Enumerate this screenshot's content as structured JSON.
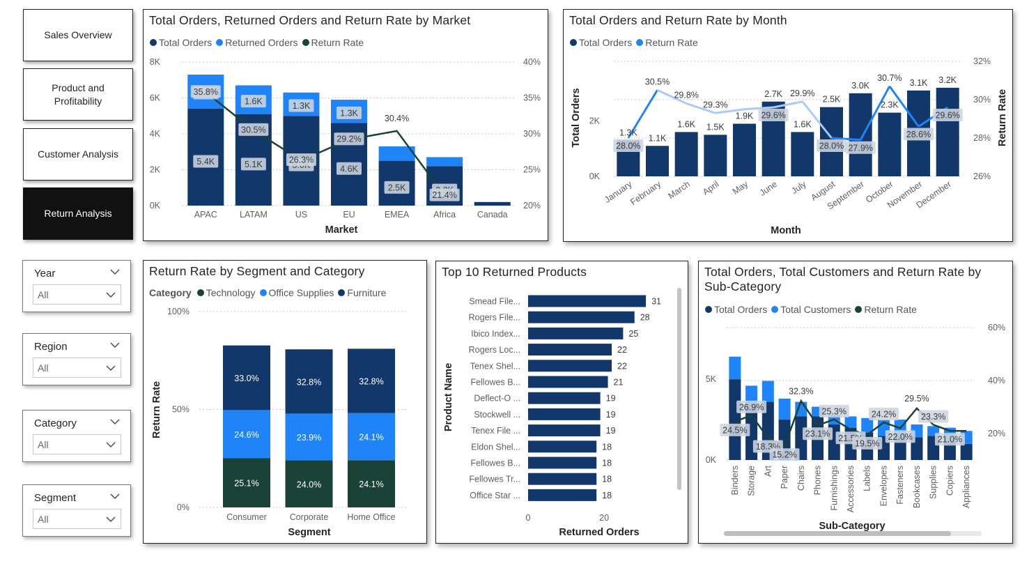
{
  "nav": [
    {
      "label": "Sales Overview",
      "active": false
    },
    {
      "label": "Product and Profitability",
      "active": false
    },
    {
      "label": "Customer Analysis",
      "active": false
    },
    {
      "label": "Return Analysis",
      "active": true
    }
  ],
  "slicers": [
    {
      "title": "Year",
      "value": "All"
    },
    {
      "title": "Region",
      "value": "All"
    },
    {
      "title": "Category",
      "value": "All"
    },
    {
      "title": "Segment",
      "value": "All"
    }
  ],
  "colors": {
    "dark_navy": "#12386b",
    "bright_blue": "#1f84f7",
    "dark_green": "#1b4237",
    "light_blue": "#a9cbf6"
  },
  "chart_data": [
    {
      "id": "market",
      "type": "bar",
      "title": "Total Orders, Returned Orders and Return Rate by Market",
      "legend": [
        "Total Orders",
        "Returned Orders",
        "Return Rate"
      ],
      "xlabel": "Market",
      "categories": [
        "APAC",
        "LATAM",
        "US",
        "EU",
        "EMEA",
        "Africa",
        "Canada"
      ],
      "series": [
        {
          "name": "Total Orders",
          "values": [
            5400,
            5100,
            5000,
            4600,
            2500,
            2200,
            200
          ],
          "labels": [
            "5.4K",
            "5.1K",
            "5.0K",
            "4.6K",
            "2.5K",
            "2.2K",
            ""
          ]
        },
        {
          "name": "Returned Orders",
          "values": [
            1900,
            1600,
            1300,
            1300,
            800,
            500,
            0
          ],
          "labels": [
            "1.9K",
            "1.6K",
            "1.3K",
            "1.3K",
            "",
            "",
            ""
          ]
        },
        {
          "name": "Return Rate",
          "values": [
            35.8,
            30.5,
            26.3,
            29.2,
            30.4,
            21.4,
            null
          ],
          "labels": [
            "35.8%",
            "30.5%",
            "26.3%",
            "29.2%",
            "30.4%",
            "21.4%",
            ""
          ]
        }
      ],
      "y_ticks": [
        "0K",
        "2K",
        "4K",
        "6K",
        "8K"
      ],
      "y2_ticks": [
        "20%",
        "25%",
        "30%",
        "35%",
        "40%"
      ],
      "ylim": [
        0,
        8000
      ],
      "y2lim": [
        20,
        40
      ]
    },
    {
      "id": "month",
      "type": "bar",
      "title": "Total Orders and Return Rate by Month",
      "legend": [
        "Total Orders",
        "Return Rate"
      ],
      "xlabel": "Month",
      "ylabel": "Total Orders",
      "y2label": "Return Rate",
      "categories": [
        "January",
        "February",
        "March",
        "April",
        "May",
        "June",
        "July",
        "August",
        "September",
        "October",
        "November",
        "December"
      ],
      "series": [
        {
          "name": "Total Orders",
          "values": [
            1300,
            1100,
            1600,
            1500,
            1900,
            2700,
            1600,
            2500,
            3000,
            2300,
            3100,
            3200
          ],
          "labels": [
            "1.3K",
            "1.1K",
            "1.6K",
            "1.5K",
            "1.9K",
            "2.7K",
            "1.6K",
            "2.5K",
            "3.0K",
            "2.3K",
            "3.1K",
            "3.2K"
          ]
        },
        {
          "name": "Return Rate",
          "values": [
            28.0,
            30.5,
            29.8,
            29.3,
            29.5,
            29.6,
            29.9,
            28.0,
            27.9,
            30.7,
            28.6,
            29.6
          ],
          "labels": [
            "28.0%",
            "30.5%",
            "29.8%",
            "29.3%",
            "",
            "29.6%",
            "29.9%",
            "28.0%",
            "27.9%",
            "30.7%",
            "28.6%",
            "29.6%"
          ]
        }
      ],
      "y_ticks": [
        "0K",
        "2K"
      ],
      "y2_ticks": [
        "26%",
        "28%",
        "30%",
        "32%"
      ],
      "ylim": [
        0,
        3600
      ],
      "y2lim": [
        26,
        32
      ]
    },
    {
      "id": "segment",
      "type": "bar",
      "title": "Return Rate by Segment and Category",
      "legend_title": "Category",
      "legend": [
        "Technology",
        "Office Supplies",
        "Furniture"
      ],
      "xlabel": "Segment",
      "ylabel": "Return Rate",
      "categories": [
        "Consumer",
        "Corporate",
        "Home Office"
      ],
      "series": [
        {
          "name": "Technology",
          "values": [
            25.1,
            24.0,
            24.1
          ],
          "labels": [
            "25.1%",
            "24.0%",
            "24.1%"
          ]
        },
        {
          "name": "Office Supplies",
          "values": [
            24.6,
            23.9,
            24.1
          ],
          "labels": [
            "24.6%",
            "23.9%",
            "24.1%"
          ]
        },
        {
          "name": "Furniture",
          "values": [
            33.0,
            32.8,
            32.8
          ],
          "labels": [
            "33.0%",
            "32.8%",
            "32.8%"
          ]
        }
      ],
      "y_ticks": [
        "0%",
        "50%",
        "100%"
      ],
      "ylim": [
        0,
        100
      ]
    },
    {
      "id": "top10",
      "type": "bar",
      "title": "Top 10 Returned Products",
      "xlabel": "Returned Orders",
      "ylabel": "Product Name",
      "categories": [
        "Smead File...",
        "Rogers File...",
        "Ibico Index...",
        "Rogers Loc...",
        "Tenex Shel...",
        "Fellowes B...",
        "Deflect-O ...",
        "Stockwell ...",
        "Tenex File ...",
        "Eldon Shel...",
        "Fellowes B...",
        "Fellowes Tr...",
        "Office Star ..."
      ],
      "values": [
        31,
        28,
        25,
        22,
        22,
        21,
        19,
        19,
        19,
        18,
        18,
        18,
        18
      ],
      "x_ticks": [
        "0",
        "20"
      ],
      "xlim": [
        0,
        33
      ]
    },
    {
      "id": "subcat",
      "type": "bar",
      "title": "Total Orders, Total Customers and Return Rate by Sub-Category",
      "legend": [
        "Total Orders",
        "Total Customers",
        "Return Rate"
      ],
      "xlabel": "Sub-Category",
      "categories": [
        "Binders",
        "Storage",
        "Art",
        "Paper",
        "Chairs",
        "Phones",
        "Furnishings",
        "Accessories",
        "Labels",
        "Envelopes",
        "Fasteners",
        "Bookcases",
        "Supplies",
        "Copiers",
        "Appliances"
      ],
      "series": [
        {
          "name": "Total Orders",
          "values": [
            5000,
            3500,
            3600,
            2500,
            2700,
            2700,
            2200,
            2000,
            1700,
            1500,
            1500,
            1400,
            1500,
            1200,
            1000
          ]
        },
        {
          "name": "Total Customers",
          "values": [
            1400,
            1100,
            1300,
            1300,
            900,
            600,
            600,
            700,
            900,
            1000,
            1000,
            800,
            600,
            800,
            800
          ]
        },
        {
          "name": "Return Rate",
          "values": [
            24.5,
            26.9,
            18.3,
            15.2,
            32.3,
            23.1,
            25.3,
            21.5,
            19.5,
            24.2,
            22.0,
            29.5,
            23.3,
            21.0,
            21.0
          ],
          "labels": [
            "24.5%",
            "26.9%",
            "18.3%",
            "15.2%",
            "32.3%",
            "23.1%",
            "25.3%",
            "21.5%",
            "19.5%",
            "24.2%",
            "22.0%",
            "29.5%",
            "23.3%",
            "21.0%",
            ""
          ]
        }
      ],
      "y_ticks": [
        "0K",
        "5K"
      ],
      "y2_ticks": [
        "20%",
        "40%",
        "60%"
      ],
      "ylim": [
        0,
        8200
      ],
      "y2lim": [
        10,
        60
      ]
    }
  ]
}
